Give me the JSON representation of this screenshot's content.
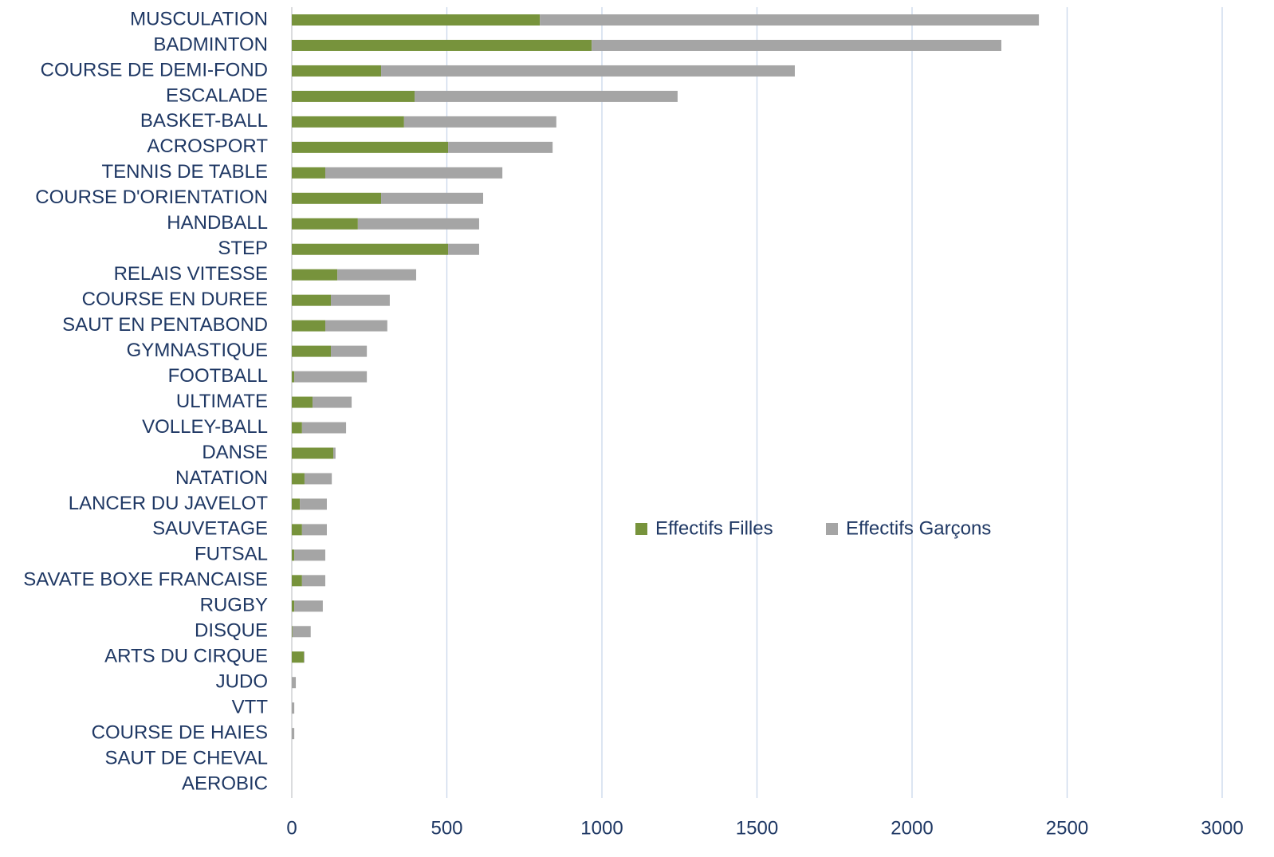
{
  "chart_data": {
    "type": "stacked_barh",
    "categories": [
      "MUSCULATION",
      "BADMINTON",
      "COURSE DE DEMI-FOND",
      "ESCALADE",
      "BASKET-BALL",
      "ACROSPORT",
      "TENNIS DE TABLE",
      "COURSE D'ORIENTATION",
      "HANDBALL",
      "STEP",
      "RELAIS VITESSE",
      "COURSE EN DUREE",
      "SAUT EN PENTABOND",
      "GYMNASTIQUE",
      "FOOTBALL",
      "ULTIMATE",
      "VOLLEY-BALL",
      "DANSE",
      "NATATION",
      "LANCER DU JAVELOT",
      "SAUVETAGE",
      "FUTSAL",
      "SAVATE BOXE FRANCAISE",
      "RUGBY",
      "DISQUE",
      "ARTS DU CIRQUE",
      "JUDO",
      "VTT",
      "COURSE DE HAIES",
      "SAUT DE CHEVAL",
      "AEROBIC"
    ],
    "series": [
      {
        "name": "Effectifs Filles",
        "color": "#77933c",
        "values": [
          800,
          967,
          288,
          396,
          362,
          504,
          108,
          288,
          213,
          504,
          147,
          126,
          108,
          126,
          8,
          67,
          33,
          134,
          41,
          26,
          33,
          8,
          33,
          8,
          2,
          39,
          0,
          0,
          0,
          0,
          0
        ]
      },
      {
        "name": "Effectifs Garçons",
        "color": "#a5a5a5",
        "values": [
          1609,
          1321,
          1334,
          848,
          491,
          337,
          571,
          329,
          391,
          100,
          254,
          190,
          200,
          116,
          234,
          126,
          142,
          7,
          88,
          87,
          80,
          100,
          75,
          92,
          59,
          2,
          13,
          8,
          8,
          0,
          0
        ]
      }
    ],
    "xlim": [
      0,
      3000
    ],
    "xticks": [
      0,
      500,
      1000,
      1500,
      2000,
      2500,
      3000
    ],
    "grid": true,
    "legend": "center-right"
  }
}
